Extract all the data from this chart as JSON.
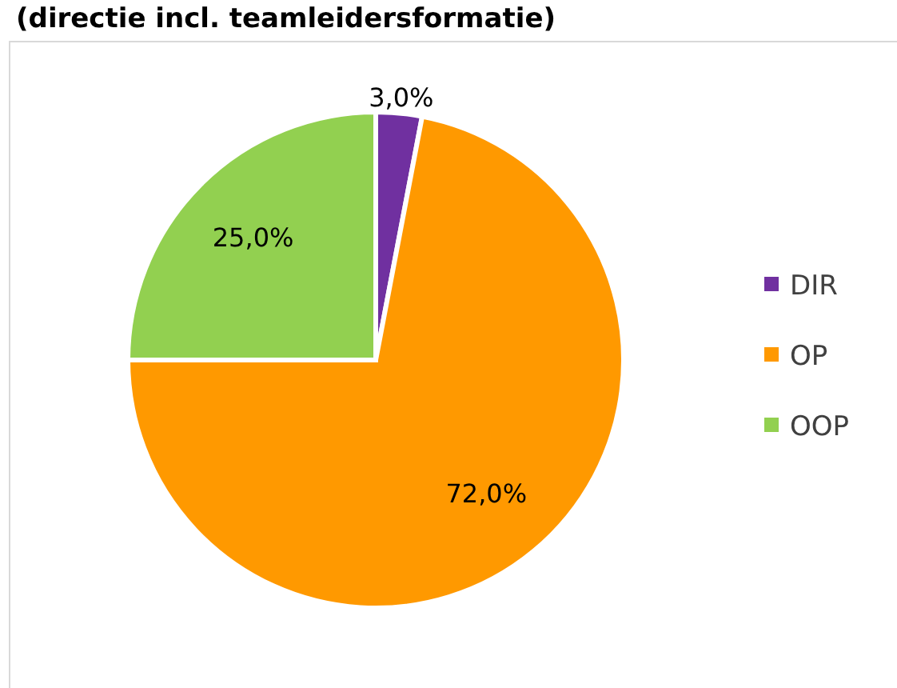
{
  "chart_data": {
    "type": "pie",
    "title": "(directie incl. teamleidersformatie)",
    "categories": [
      "DIR",
      "OP",
      "OOP"
    ],
    "values": [
      3,
      72,
      25
    ],
    "colors": [
      "#7030a0",
      "#ff9900",
      "#92d050"
    ],
    "value_labels": [
      "3,0%",
      "72,0%",
      "25,0%"
    ],
    "legend": "right"
  }
}
